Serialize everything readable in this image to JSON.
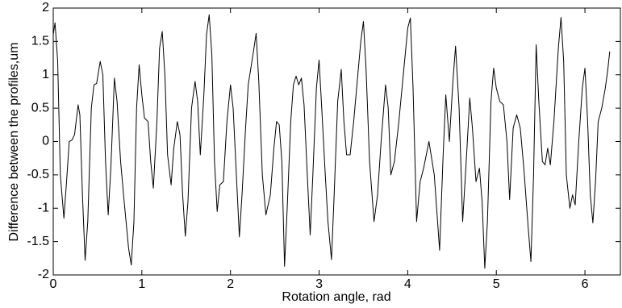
{
  "chart_data": {
    "type": "line",
    "xlabel": "Rotation angle, rad",
    "ylabel": "Difference between the profiles,um",
    "color": "#000000",
    "xlim": [
      0,
      6.4
    ],
    "ylim": [
      -2,
      2
    ],
    "xticks": [
      0,
      1,
      2,
      3,
      4,
      5,
      6
    ],
    "yticks": [
      -2,
      -1.5,
      -1,
      -0.5,
      0,
      0.5,
      1,
      1.5,
      2
    ],
    "x": [
      0,
      0.02,
      0.05,
      0.08,
      0.12,
      0.15,
      0.18,
      0.21,
      0.24,
      0.28,
      0.3,
      0.33,
      0.36,
      0.39,
      0.43,
      0.46,
      0.49,
      0.53,
      0.56,
      0.59,
      0.62,
      0.65,
      0.69,
      0.72,
      0.76,
      0.8,
      0.85,
      0.88,
      0.91,
      0.94,
      0.97,
      1.0,
      1.03,
      1.07,
      1.1,
      1.13,
      1.17,
      1.2,
      1.23,
      1.26,
      1.29,
      1.33,
      1.36,
      1.4,
      1.43,
      1.46,
      1.49,
      1.52,
      1.56,
      1.6,
      1.63,
      1.66,
      1.7,
      1.73,
      1.76,
      1.79,
      1.82,
      1.85,
      1.88,
      1.92,
      1.96,
      2.0,
      2.03,
      2.07,
      2.1,
      2.13,
      2.17,
      2.2,
      2.26,
      2.29,
      2.32,
      2.36,
      2.4,
      2.45,
      2.49,
      2.52,
      2.55,
      2.58,
      2.61,
      2.64,
      2.68,
      2.71,
      2.74,
      2.77,
      2.8,
      2.83,
      2.87,
      2.9,
      2.93,
      2.97,
      3.0,
      3.03,
      3.07,
      3.1,
      3.14,
      3.17,
      3.21,
      3.25,
      3.28,
      3.31,
      3.35,
      3.39,
      3.43,
      3.47,
      3.5,
      3.53,
      3.57,
      3.62,
      3.66,
      3.7,
      3.75,
      3.78,
      3.81,
      3.85,
      3.9,
      3.95,
      4.0,
      4.03,
      4.06,
      4.1,
      4.14,
      4.18,
      4.24,
      4.3,
      4.36,
      4.4,
      4.43,
      4.47,
      4.51,
      4.54,
      4.58,
      4.62,
      4.66,
      4.7,
      4.73,
      4.77,
      4.81,
      4.84,
      4.87,
      4.9,
      4.94,
      4.97,
      5.0,
      5.04,
      5.08,
      5.12,
      5.15,
      5.19,
      5.23,
      5.27,
      5.31,
      5.36,
      5.39,
      5.42,
      5.45,
      5.48,
      5.52,
      5.55,
      5.58,
      5.61,
      5.65,
      5.7,
      5.73,
      5.76,
      5.79,
      5.83,
      5.86,
      5.89,
      5.93,
      5.97,
      6.0,
      6.03,
      6.06,
      6.09,
      6.12,
      6.15,
      6.19,
      6.23,
      6.26,
      6.28
    ],
    "values": [
      1.6,
      1.78,
      1.2,
      -0.5,
      -1.15,
      -0.6,
      0.0,
      0.02,
      0.1,
      0.55,
      0.4,
      -0.8,
      -1.78,
      -1.2,
      0.5,
      0.85,
      0.87,
      1.2,
      1.0,
      -0.3,
      -1.1,
      -0.4,
      0.95,
      0.6,
      -0.3,
      -0.9,
      -1.6,
      -1.85,
      -1.2,
      0.5,
      1.15,
      0.7,
      0.35,
      0.3,
      -0.3,
      -0.7,
      0.3,
      1.4,
      1.65,
      1.0,
      -0.2,
      -0.65,
      -0.1,
      0.3,
      0.1,
      -0.8,
      -1.42,
      -0.9,
      0.5,
      0.9,
      0.6,
      -0.2,
      0.7,
      1.6,
      1.9,
      1.3,
      -0.3,
      -1.05,
      -0.65,
      -0.6,
      0.3,
      0.85,
      0.5,
      -0.6,
      -1.43,
      -0.8,
      0.2,
      0.85,
      1.35,
      1.62,
      0.9,
      -0.5,
      -1.1,
      -0.8,
      -0.1,
      0.3,
      0.25,
      -0.3,
      -1.87,
      -1.0,
      0.3,
      0.85,
      0.98,
      0.85,
      0.95,
      0.55,
      -0.6,
      -1.4,
      -0.5,
      0.8,
      1.22,
      0.5,
      -0.5,
      -1.2,
      -1.77,
      -0.8,
      0.6,
      1.08,
      0.3,
      -0.2,
      -0.2,
      0.3,
      0.9,
      1.5,
      1.8,
      1.1,
      -0.3,
      -1.2,
      -0.8,
      0.0,
      0.85,
      0.5,
      -0.5,
      -0.3,
      0.3,
      1.0,
      1.7,
      1.85,
      0.8,
      -1.2,
      -0.6,
      -0.4,
      0.0,
      -0.5,
      -1.63,
      -0.2,
      0.7,
      0.0,
      0.9,
      1.43,
      0.5,
      -1.2,
      -0.3,
      0.65,
      0.2,
      -0.6,
      -0.4,
      -0.9,
      -1.9,
      -1.2,
      0.6,
      1.1,
      0.8,
      0.6,
      0.55,
      0.0,
      -0.87,
      0.2,
      0.4,
      0.2,
      -0.4,
      -1.3,
      -1.8,
      -0.5,
      1.45,
      0.6,
      -0.3,
      -0.35,
      -0.1,
      -0.35,
      0.3,
      1.4,
      1.86,
      1.2,
      -0.5,
      -1.0,
      -0.8,
      -0.95,
      0.0,
      0.8,
      1.1,
      0.3,
      -0.8,
      -1.22,
      -0.6,
      0.3,
      0.5,
      0.8,
      1.1,
      1.35
    ]
  }
}
